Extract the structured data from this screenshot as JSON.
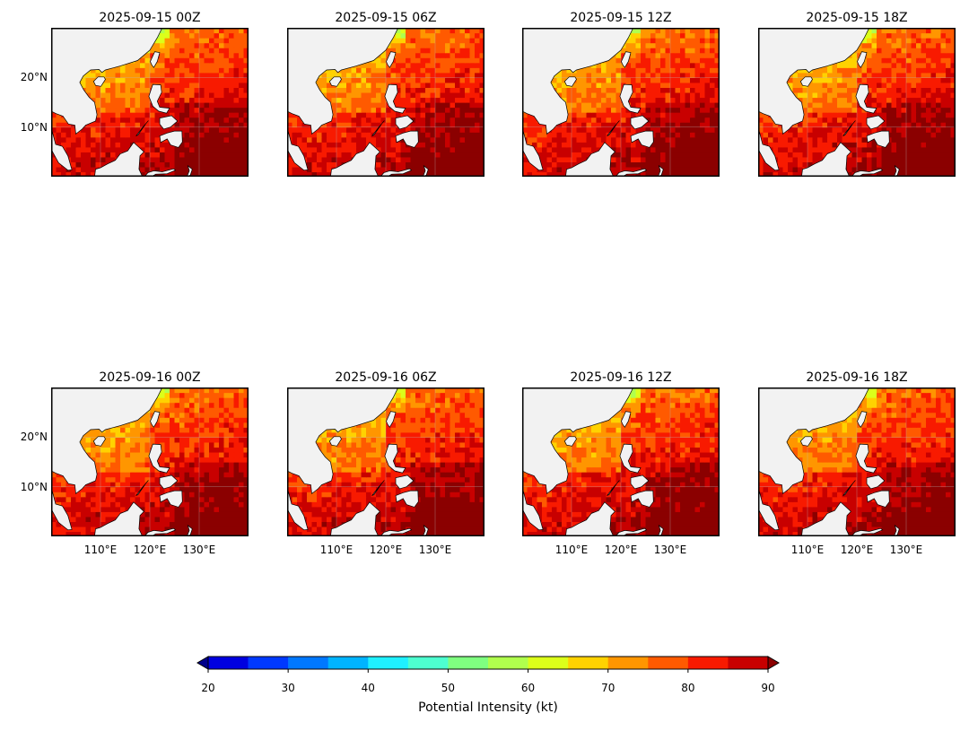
{
  "panels": [
    {
      "title": "2025-09-15 00Z",
      "seed": 11
    },
    {
      "title": "2025-09-15 06Z",
      "seed": 23
    },
    {
      "title": "2025-09-15 12Z",
      "seed": 37
    },
    {
      "title": "2025-09-15 18Z",
      "seed": 41
    },
    {
      "title": "2025-09-16 00Z",
      "seed": 53
    },
    {
      "title": "2025-09-16 06Z",
      "seed": 67
    },
    {
      "title": "2025-09-16 12Z",
      "seed": 71
    },
    {
      "title": "2025-09-16 18Z",
      "seed": 89
    }
  ],
  "map": {
    "lat_labels": [
      "20°N",
      "10°N"
    ],
    "lon_labels": [
      "110°E",
      "120°E",
      "130°E"
    ],
    "land_color": "#f2f2f2",
    "coast_color": "#000000"
  },
  "colorbar": {
    "label": "Potential Intensity (kt)",
    "ticks": [
      "20",
      "30",
      "40",
      "50",
      "60",
      "70",
      "80",
      "90"
    ],
    "min": 20,
    "max": 90,
    "step": 5,
    "extend": "both",
    "colors": [
      "#00008b",
      "#0000e0",
      "#0039ff",
      "#0078ff",
      "#00b4ff",
      "#1ff0ff",
      "#4dffd0",
      "#7fff80",
      "#b0ff4d",
      "#dcff1a",
      "#ffd200",
      "#ff9600",
      "#ff5a00",
      "#f81a00",
      "#c80000",
      "#8b0000"
    ]
  }
}
